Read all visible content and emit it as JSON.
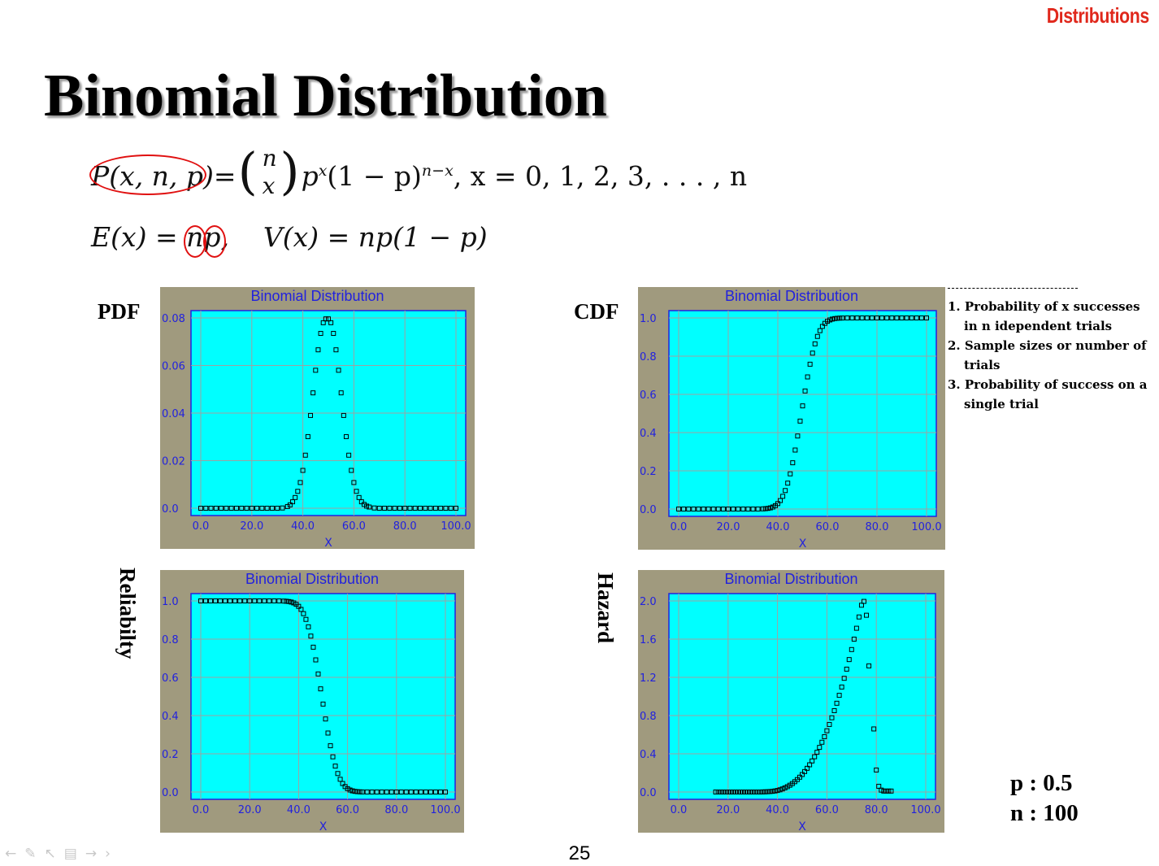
{
  "header": {
    "section": "Distributions",
    "title": "Binomial Distribution"
  },
  "formulas": {
    "pmf_lhs": "P(x, n, p)",
    "pmf_eq": "=",
    "binom_top": "n",
    "binom_bottom": "x",
    "pmf_rhs_base": "p",
    "pmf_rhs_exp1": "x",
    "pmf_rhs_mid": "(1 − p)",
    "pmf_rhs_exp2": "n−x",
    "pmf_domain": ",    x = 0, 1, 2, 3, . . . , n",
    "mean": "E(x) = np,",
    "variance": "V(x) = np(1 − p)"
  },
  "plot_labels": {
    "pdf": "PDF",
    "cdf": "CDF",
    "reliability": "Reliabilty",
    "hazard": "Hazard"
  },
  "notes": {
    "items": [
      "1. Probability of x successes in n idependent trials",
      "2. Sample sizes or number of trials",
      "3. Probability of success on a single trial"
    ]
  },
  "params": {
    "p": "p : 0.5",
    "n": "n : 100"
  },
  "page_number": "25",
  "colors": {
    "frame": "#a09a7e",
    "plot_bg": "#00ffff",
    "title_blue": "#2222dd",
    "grid": "#a0a0a0",
    "accent_red": "#e01010"
  },
  "chart_data": [
    {
      "id": "pdf",
      "type": "scatter",
      "title": "Binomial Distribution",
      "xlabel": "X",
      "xlim": [
        0,
        100
      ],
      "ylim": [
        0,
        0.08
      ],
      "xticks": [
        "0.0",
        "20.0",
        "40.0",
        "60.0",
        "80.0",
        "100.0"
      ],
      "yticks": [
        "0.0",
        "0.02",
        "0.04",
        "0.06",
        "0.08"
      ],
      "x_step": 2,
      "x": [
        0,
        2,
        4,
        6,
        8,
        10,
        12,
        14,
        16,
        18,
        20,
        22,
        24,
        26,
        28,
        30,
        32,
        34,
        35,
        36,
        37,
        38,
        39,
        40,
        41,
        42,
        43,
        44,
        45,
        46,
        47,
        48,
        49,
        50,
        51,
        52,
        53,
        54,
        55,
        56,
        57,
        58,
        59,
        60,
        61,
        62,
        63,
        64,
        65,
        66,
        68,
        70,
        72,
        74,
        76,
        78,
        80,
        82,
        84,
        86,
        88,
        90,
        92,
        94,
        96,
        98,
        100
      ],
      "y": [
        0,
        0,
        0,
        0,
        0,
        0,
        0,
        0,
        0,
        0,
        0,
        0,
        0,
        0,
        0,
        0,
        0.0001,
        0.0007,
        0.0014,
        0.0027,
        0.0045,
        0.0071,
        0.0108,
        0.0159,
        0.0223,
        0.0301,
        0.039,
        0.0485,
        0.058,
        0.0666,
        0.0735,
        0.078,
        0.0796,
        0.0796,
        0.078,
        0.0735,
        0.0666,
        0.058,
        0.0485,
        0.039,
        0.0301,
        0.0223,
        0.0159,
        0.0108,
        0.0071,
        0.0045,
        0.0027,
        0.0016,
        0.0009,
        0.0005,
        0.0001,
        0,
        0,
        0,
        0,
        0,
        0,
        0,
        0,
        0,
        0,
        0,
        0,
        0,
        0,
        0,
        0
      ]
    },
    {
      "id": "cdf",
      "type": "scatter",
      "title": "Binomial Distribution",
      "xlabel": "X",
      "xlim": [
        0,
        100
      ],
      "ylim": [
        0,
        1.0
      ],
      "xticks": [
        "0.0",
        "20.0",
        "40.0",
        "60.0",
        "80.0",
        "100.0"
      ],
      "yticks": [
        "0.0",
        "0.2",
        "0.4",
        "0.6",
        "0.8",
        "1.0"
      ],
      "x": [
        0,
        2,
        4,
        6,
        8,
        10,
        12,
        14,
        16,
        18,
        20,
        22,
        24,
        26,
        28,
        30,
        32,
        34,
        35,
        36,
        37,
        38,
        39,
        40,
        41,
        42,
        43,
        44,
        45,
        46,
        47,
        48,
        49,
        50,
        51,
        52,
        53,
        54,
        55,
        56,
        57,
        58,
        59,
        60,
        61,
        62,
        63,
        64,
        65,
        66,
        68,
        70,
        72,
        74,
        76,
        78,
        80,
        82,
        84,
        86,
        88,
        90,
        92,
        94,
        96,
        98,
        100
      ],
      "y": [
        0,
        0,
        0,
        0,
        0,
        0,
        0,
        0,
        0,
        0,
        0,
        0,
        0,
        0,
        0,
        0,
        0.0001,
        0.0009,
        0.0018,
        0.0033,
        0.006,
        0.0105,
        0.0176,
        0.0284,
        0.0443,
        0.0666,
        0.0967,
        0.1356,
        0.1841,
        0.2421,
        0.3086,
        0.3822,
        0.4602,
        0.5398,
        0.6178,
        0.6914,
        0.7579,
        0.8159,
        0.8644,
        0.9033,
        0.9334,
        0.9557,
        0.9716,
        0.9824,
        0.9895,
        0.994,
        0.9967,
        0.9982,
        0.9991,
        0.9996,
        0.9999,
        1,
        1,
        1,
        1,
        1,
        1,
        1,
        1,
        1,
        1,
        1,
        1,
        1,
        1,
        1,
        1
      ]
    },
    {
      "id": "reliability",
      "type": "scatter",
      "title": "Binomial Distribution",
      "xlabel": "X",
      "xlim": [
        0,
        100
      ],
      "ylim": [
        0,
        1.0
      ],
      "xticks": [
        "0.0",
        "20.0",
        "40.0",
        "60.0",
        "80.0",
        "100.0"
      ],
      "yticks": [
        "0.0",
        "0.2",
        "0.4",
        "0.6",
        "0.8",
        "1.0"
      ],
      "x": [
        0,
        2,
        4,
        6,
        8,
        10,
        12,
        14,
        16,
        18,
        20,
        22,
        24,
        26,
        28,
        30,
        32,
        34,
        35,
        36,
        37,
        38,
        39,
        40,
        41,
        42,
        43,
        44,
        45,
        46,
        47,
        48,
        49,
        50,
        51,
        52,
        53,
        54,
        55,
        56,
        57,
        58,
        59,
        60,
        61,
        62,
        63,
        64,
        65,
        66,
        68,
        70,
        72,
        74,
        76,
        78,
        80,
        82,
        84,
        86,
        88,
        90,
        92,
        94,
        96,
        98,
        100
      ],
      "y": [
        1,
        1,
        1,
        1,
        1,
        1,
        1,
        1,
        1,
        1,
        1,
        1,
        1,
        1,
        1,
        1,
        0.9999,
        0.9991,
        0.9982,
        0.9967,
        0.994,
        0.9895,
        0.9824,
        0.9716,
        0.9557,
        0.9334,
        0.9033,
        0.8644,
        0.8159,
        0.7579,
        0.6914,
        0.6178,
        0.5398,
        0.4602,
        0.3822,
        0.3086,
        0.2421,
        0.1841,
        0.1356,
        0.0967,
        0.0666,
        0.0443,
        0.0284,
        0.0176,
        0.0105,
        0.006,
        0.0033,
        0.0018,
        0.0009,
        0.0004,
        0.0001,
        0,
        0,
        0,
        0,
        0,
        0,
        0,
        0,
        0,
        0,
        0,
        0,
        0,
        0,
        0,
        0
      ]
    },
    {
      "id": "hazard",
      "type": "scatter",
      "title": "Binomial Distribution",
      "xlabel": "X",
      "xlim": [
        0,
        100
      ],
      "ylim": [
        0,
        2.0
      ],
      "xticks": [
        "0.0",
        "20.0",
        "40.0",
        "60.0",
        "80.0",
        "100.0"
      ],
      "yticks": [
        "0.0",
        "0.4",
        "0.8",
        "1.2",
        "1.6",
        "2.0"
      ],
      "x": [
        15,
        16,
        17,
        18,
        19,
        20,
        21,
        22,
        23,
        24,
        25,
        26,
        27,
        28,
        29,
        30,
        31,
        32,
        33,
        34,
        35,
        36,
        37,
        38,
        39,
        40,
        41,
        42,
        43,
        44,
        45,
        46,
        47,
        48,
        49,
        50,
        51,
        52,
        53,
        54,
        55,
        56,
        57,
        58,
        59,
        60,
        61,
        62,
        63,
        64,
        65,
        66,
        67,
        68,
        69,
        70,
        71,
        72,
        73,
        74,
        75,
        76,
        77,
        79,
        80,
        81,
        82,
        83,
        84,
        85,
        86
      ],
      "y": [
        0,
        0,
        0,
        0,
        0,
        0,
        0,
        0,
        0,
        0,
        0,
        0,
        0,
        0,
        0,
        0,
        0,
        0,
        0,
        0.001,
        0.002,
        0.003,
        0.005,
        0.007,
        0.011,
        0.016,
        0.023,
        0.032,
        0.043,
        0.056,
        0.071,
        0.088,
        0.108,
        0.13,
        0.155,
        0.183,
        0.214,
        0.248,
        0.285,
        0.325,
        0.369,
        0.416,
        0.467,
        0.521,
        0.579,
        0.641,
        0.707,
        0.777,
        0.851,
        0.929,
        1.012,
        1.099,
        1.19,
        1.286,
        1.386,
        1.491,
        1.6,
        1.714,
        1.832,
        1.955,
        1.995,
        1.85,
        1.32,
        0.66,
        0.23,
        0.06,
        0.02,
        0.01,
        0.01,
        0.01,
        0.01
      ]
    }
  ]
}
